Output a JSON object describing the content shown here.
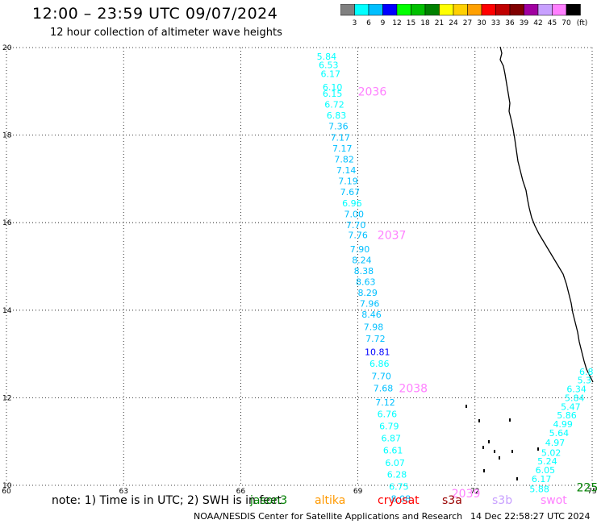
{
  "header": {
    "title": "12:00 – 23:59 UTC 09/07/2024",
    "subtitle": "12 hour collection of altimeter wave heights"
  },
  "colorbar": {
    "labels": [
      "3",
      "6",
      "9",
      "12",
      "15",
      "18",
      "21",
      "24",
      "27",
      "30",
      "33",
      "36",
      "39",
      "42",
      "45",
      "70"
    ],
    "unit": "(ft)",
    "colors": [
      "#808080",
      "#00ffff",
      "#00bfff",
      "#0000ff",
      "#00ff00",
      "#00c000",
      "#008000",
      "#ffff00",
      "#ffd000",
      "#ffa000",
      "#ff0000",
      "#c00000",
      "#800000",
      "#a000a0",
      "#c8a0ff",
      "#ff80ff",
      "#000000"
    ]
  },
  "footer": {
    "note": "note:  1) Time is in UTC; 2) SWH is in feet",
    "credit": "NOAA/NESDIS Center for Satellite Applications and Research",
    "timestamp": "14 Dec 22:58:27 UTC 2024",
    "missions": [
      {
        "name": "jason3",
        "color": "#008000"
      },
      {
        "name": "altika",
        "color": "#ff9900"
      },
      {
        "name": "cryosat",
        "color": "#ff0000"
      },
      {
        "name": "s3a",
        "color": "#990000"
      },
      {
        "name": "s3b",
        "color": "#c8a0ff"
      },
      {
        "name": "swot",
        "color": "#ff80ff"
      }
    ]
  },
  "chart_data": {
    "type": "scatter",
    "title": "12:00 – 23:59 UTC 09/07/2024",
    "xlim": [
      60,
      75
    ],
    "ylim": [
      10,
      20
    ],
    "x_ticks": [
      "60",
      "63",
      "66",
      "69",
      "72",
      "75"
    ],
    "y_ticks": [
      "10",
      "12",
      "14",
      "16",
      "18",
      "20"
    ],
    "grid": true,
    "series": [
      {
        "name": "swot",
        "points": [
          {
            "x": 68.2,
            "y": 19.8,
            "v": "5.84",
            "c": "#00ffff"
          },
          {
            "x": 68.25,
            "y": 19.6,
            "v": "6.53",
            "c": "#00ffff"
          },
          {
            "x": 68.3,
            "y": 19.4,
            "v": "6.17",
            "c": "#00ffff"
          },
          {
            "x": 68.35,
            "y": 19.1,
            "v": "6.10",
            "c": "#00ffff"
          },
          {
            "x": 68.35,
            "y": 18.95,
            "v": "6.15",
            "c": "#00ffff"
          },
          {
            "x": 68.4,
            "y": 18.7,
            "v": "6.72",
            "c": "#00ffff"
          },
          {
            "x": 68.45,
            "y": 18.45,
            "v": "6.83",
            "c": "#00ffff"
          },
          {
            "x": 68.5,
            "y": 18.2,
            "v": "7.36",
            "c": "#00bfff"
          },
          {
            "x": 68.55,
            "y": 17.95,
            "v": "7.17",
            "c": "#00bfff"
          },
          {
            "x": 68.6,
            "y": 17.7,
            "v": "7.17",
            "c": "#00bfff"
          },
          {
            "x": 68.65,
            "y": 17.45,
            "v": "7.82",
            "c": "#00bfff"
          },
          {
            "x": 68.7,
            "y": 17.2,
            "v": "7.14",
            "c": "#00bfff"
          },
          {
            "x": 68.75,
            "y": 16.95,
            "v": "7.19",
            "c": "#00bfff"
          },
          {
            "x": 68.8,
            "y": 16.7,
            "v": "7.67",
            "c": "#00bfff"
          },
          {
            "x": 68.85,
            "y": 16.45,
            "v": "6.96",
            "c": "#00ffff"
          },
          {
            "x": 68.9,
            "y": 16.2,
            "v": "7.00",
            "c": "#00bfff"
          },
          {
            "x": 68.95,
            "y": 15.95,
            "v": "7.70",
            "c": "#00bfff"
          },
          {
            "x": 69.0,
            "y": 15.72,
            "v": "7.76",
            "c": "#00bfff"
          },
          {
            "x": 69.05,
            "y": 15.4,
            "v": "7.90",
            "c": "#00bfff"
          },
          {
            "x": 69.1,
            "y": 15.15,
            "v": "8.24",
            "c": "#00bfff"
          },
          {
            "x": 69.15,
            "y": 14.9,
            "v": "8.38",
            "c": "#00bfff"
          },
          {
            "x": 69.2,
            "y": 14.65,
            "v": "8.63",
            "c": "#00bfff"
          },
          {
            "x": 69.25,
            "y": 14.4,
            "v": "8.29",
            "c": "#00bfff"
          },
          {
            "x": 69.3,
            "y": 14.15,
            "v": "7.96",
            "c": "#00bfff"
          },
          {
            "x": 69.35,
            "y": 13.9,
            "v": "8.46",
            "c": "#00bfff"
          },
          {
            "x": 69.4,
            "y": 13.62,
            "v": "7.98",
            "c": "#00bfff"
          },
          {
            "x": 69.45,
            "y": 13.35,
            "v": "7.72",
            "c": "#00bfff"
          },
          {
            "x": 69.5,
            "y": 13.05,
            "v": "10.81",
            "c": "#0000ff"
          },
          {
            "x": 69.55,
            "y": 12.78,
            "v": "6.86",
            "c": "#00ffff"
          },
          {
            "x": 69.6,
            "y": 12.5,
            "v": "7.70",
            "c": "#00bfff"
          },
          {
            "x": 69.65,
            "y": 12.22,
            "v": "7.68",
            "c": "#00bfff"
          },
          {
            "x": 69.7,
            "y": 11.9,
            "v": "7.12",
            "c": "#00bfff"
          },
          {
            "x": 69.75,
            "y": 11.63,
            "v": "6.76",
            "c": "#00ffff"
          },
          {
            "x": 69.8,
            "y": 11.35,
            "v": "6.79",
            "c": "#00ffff"
          },
          {
            "x": 69.85,
            "y": 11.08,
            "v": "6.87",
            "c": "#00ffff"
          },
          {
            "x": 69.9,
            "y": 10.8,
            "v": "6.61",
            "c": "#00ffff"
          },
          {
            "x": 69.95,
            "y": 10.52,
            "v": "6.07",
            "c": "#00ffff"
          },
          {
            "x": 70.0,
            "y": 10.25,
            "v": "6.28",
            "c": "#00ffff"
          },
          {
            "x": 70.05,
            "y": 9.97,
            "v": "6.75",
            "c": "#00ffff"
          },
          {
            "x": 70.1,
            "y": 9.7,
            "v": "8.08",
            "c": "#00bfff"
          }
        ],
        "time_labels": [
          {
            "x": 69.0,
            "y": 19.0,
            "label": "2036"
          },
          {
            "x": 69.5,
            "y": 15.72,
            "label": "2037"
          },
          {
            "x": 70.05,
            "y": 12.22,
            "label": "2038"
          },
          {
            "x": 71.4,
            "y": 9.82,
            "label": "2039"
          }
        ]
      },
      {
        "name": "jason3",
        "points": [
          {
            "x": 74.85,
            "y": 12.6,
            "v": "6.8",
            "c": "#00ffff"
          },
          {
            "x": 74.8,
            "y": 12.4,
            "v": "5.3",
            "c": "#00ffff"
          },
          {
            "x": 74.6,
            "y": 12.2,
            "v": "6.34",
            "c": "#00ffff"
          },
          {
            "x": 74.55,
            "y": 12.0,
            "v": "5.84",
            "c": "#00ffff"
          },
          {
            "x": 74.45,
            "y": 11.8,
            "v": "5.47",
            "c": "#00ffff"
          },
          {
            "x": 74.35,
            "y": 11.6,
            "v": "5.86",
            "c": "#00ffff"
          },
          {
            "x": 74.25,
            "y": 11.4,
            "v": "4.99",
            "c": "#00ffff"
          },
          {
            "x": 74.15,
            "y": 11.2,
            "v": "5.64",
            "c": "#00ffff"
          },
          {
            "x": 74.05,
            "y": 10.98,
            "v": "4.97",
            "c": "#00ffff"
          },
          {
            "x": 73.95,
            "y": 10.75,
            "v": "5.02",
            "c": "#00ffff"
          },
          {
            "x": 73.85,
            "y": 10.55,
            "v": "5.24",
            "c": "#00ffff"
          },
          {
            "x": 73.8,
            "y": 10.35,
            "v": "6.05",
            "c": "#00ffff"
          },
          {
            "x": 73.7,
            "y": 10.15,
            "v": "6.17",
            "c": "#00ffff"
          },
          {
            "x": 73.65,
            "y": 9.92,
            "v": "5.88",
            "c": "#00ffff"
          }
        ],
        "time_labels": [
          {
            "x": 74.6,
            "y": 9.95,
            "label": "225"
          }
        ]
      }
    ]
  }
}
